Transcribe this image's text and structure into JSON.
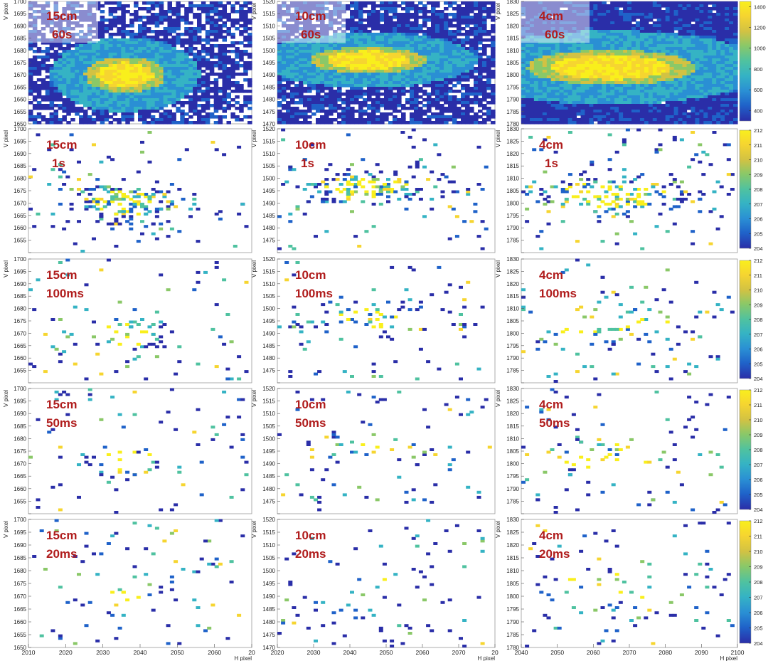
{
  "figure": {
    "ylabel": "V pixel",
    "xlabel": "H pixel"
  },
  "columns": [
    {
      "distance": "15cm",
      "x_ticks": [
        "2010",
        "2020",
        "2030",
        "2040",
        "2050",
        "2060",
        "20"
      ],
      "y_ticks": [
        "1650",
        "1655",
        "1660",
        "1665",
        "1670",
        "1675",
        "1680",
        "1685",
        "1690",
        "1695",
        "1700"
      ]
    },
    {
      "distance": "10cm",
      "x_ticks": [
        "2020",
        "2030",
        "2040",
        "2050",
        "2060",
        "2070",
        "20"
      ],
      "y_ticks": [
        "1470",
        "1475",
        "1480",
        "1485",
        "1490",
        "1495",
        "1500",
        "1505",
        "1510",
        "1515",
        "1520"
      ]
    },
    {
      "distance": "4cm",
      "x_ticks": [
        "2040",
        "2050",
        "2060",
        "2070",
        "2080",
        "2090",
        "2100"
      ],
      "y_ticks": [
        "1780",
        "1785",
        "1790",
        "1795",
        "1800",
        "1805",
        "1810",
        "1815",
        "1820",
        "1825",
        "1830"
      ]
    }
  ],
  "rows": [
    {
      "exposure": "60s"
    },
    {
      "exposure": "1s"
    },
    {
      "exposure": "100ms"
    },
    {
      "exposure": "50ms"
    },
    {
      "exposure": "20ms"
    }
  ],
  "colorbars": [
    {
      "row": 0,
      "ticks": [
        "400",
        "600",
        "800",
        "1000",
        "1200",
        "1400"
      ]
    },
    {
      "row": 1,
      "ticks": [
        "204",
        "205",
        "206",
        "207",
        "208",
        "209",
        "210",
        "211",
        "212"
      ]
    },
    {
      "row": 2,
      "ticks": [
        "204",
        "205",
        "206",
        "207",
        "208",
        "209",
        "210",
        "211",
        "212"
      ]
    },
    {
      "row": 3,
      "ticks": [
        "204",
        "205",
        "206",
        "207",
        "208",
        "209",
        "210",
        "211",
        "212"
      ]
    },
    {
      "row": 4,
      "ticks": [
        "204",
        "205",
        "206",
        "207",
        "208",
        "209",
        "210",
        "211",
        "212"
      ]
    }
  ],
  "palette": [
    "#2a2ea8",
    "#1f62c9",
    "#2a8fd4",
    "#35b3c4",
    "#4fc2a0",
    "#8ac868",
    "#d2c243",
    "#f6d530",
    "#f9ef1c"
  ],
  "label_color": "#b01c1c",
  "chart_data": {
    "type": "heatmap",
    "description_grid": "5 rows (exposure) x 3 columns (distance) of 2D pixel-hit histograms",
    "panels": [
      {
        "distance": "15cm",
        "exposure": "60s",
        "spot_center": [
          2036,
          1670
        ],
        "spot_sigma": [
          6,
          4
        ],
        "colorbar_range": [
          300,
          1450
        ]
      },
      {
        "distance": "10cm",
        "exposure": "60s",
        "spot_center": [
          2045,
          1496
        ],
        "spot_sigma": [
          9,
          3
        ],
        "colorbar_range": [
          300,
          1450
        ]
      },
      {
        "distance": "4cm",
        "exposure": "60s",
        "spot_center": [
          2065,
          1803
        ],
        "spot_sigma": [
          13,
          4
        ],
        "colorbar_range": [
          300,
          1450
        ]
      },
      {
        "distance": "15cm",
        "exposure": "1s",
        "spot_center": [
          2036,
          1670
        ],
        "spot_sigma": [
          6,
          4
        ],
        "colorbar_range": [
          204,
          212
        ]
      },
      {
        "distance": "10cm",
        "exposure": "1s",
        "spot_center": [
          2045,
          1496
        ],
        "spot_sigma": [
          9,
          3
        ],
        "colorbar_range": [
          204,
          212
        ]
      },
      {
        "distance": "4cm",
        "exposure": "1s",
        "spot_center": [
          2065,
          1803
        ],
        "spot_sigma": [
          13,
          4
        ],
        "colorbar_range": [
          204,
          212
        ]
      },
      {
        "distance": "15cm",
        "exposure": "100ms",
        "spot_center": [
          2036,
          1670
        ],
        "spot_sigma": [
          6,
          4
        ],
        "colorbar_range": [
          204,
          212
        ]
      },
      {
        "distance": "10cm",
        "exposure": "100ms",
        "spot_center": [
          2045,
          1496
        ],
        "spot_sigma": [
          9,
          3
        ],
        "colorbar_range": [
          204,
          212
        ]
      },
      {
        "distance": "4cm",
        "exposure": "100ms",
        "spot_center": [
          2065,
          1803
        ],
        "spot_sigma": [
          13,
          4
        ],
        "colorbar_range": [
          204,
          212
        ]
      },
      {
        "distance": "15cm",
        "exposure": "50ms",
        "spot_center": [
          2036,
          1670
        ],
        "spot_sigma": [
          6,
          4
        ],
        "colorbar_range": [
          204,
          212
        ]
      },
      {
        "distance": "10cm",
        "exposure": "50ms",
        "spot_center": [
          2045,
          1496
        ],
        "spot_sigma": [
          9,
          3
        ],
        "colorbar_range": [
          204,
          212
        ]
      },
      {
        "distance": "4cm",
        "exposure": "50ms",
        "spot_center": [
          2065,
          1803
        ],
        "spot_sigma": [
          13,
          4
        ],
        "colorbar_range": [
          204,
          212
        ]
      },
      {
        "distance": "15cm",
        "exposure": "20ms",
        "spot_center": [
          2036,
          1670
        ],
        "spot_sigma": [
          6,
          4
        ],
        "colorbar_range": [
          204,
          212
        ]
      },
      {
        "distance": "10cm",
        "exposure": "20ms",
        "spot_center": [
          2045,
          1496
        ],
        "spot_sigma": [
          9,
          3
        ],
        "colorbar_range": [
          204,
          212
        ]
      },
      {
        "distance": "4cm",
        "exposure": "20ms",
        "spot_center": [
          2065,
          1803
        ],
        "spot_sigma": [
          13,
          4
        ],
        "colorbar_range": [
          204,
          212
        ]
      }
    ]
  }
}
